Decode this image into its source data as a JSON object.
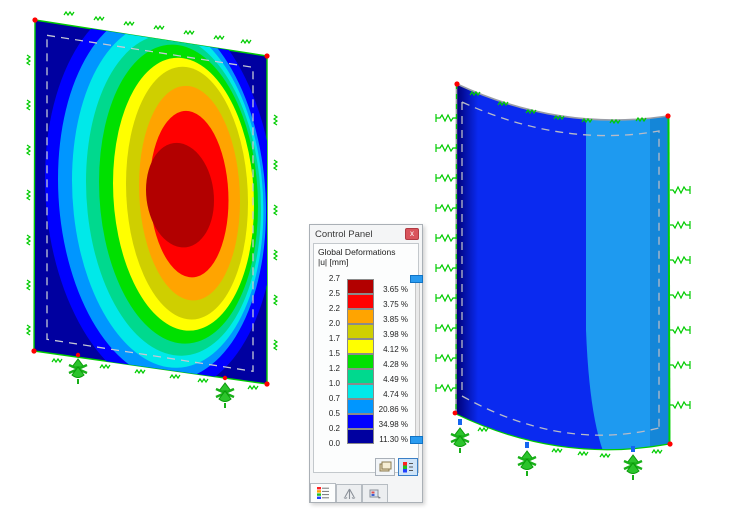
{
  "window": {
    "title": "Control Panel",
    "close_label": "x"
  },
  "panel": {
    "header_line1": "Global Deformations",
    "header_line2": "|u| [mm]",
    "legend": {
      "boundary_values": [
        "2.7",
        "2.5",
        "2.2",
        "2.0",
        "1.7",
        "1.5",
        "1.2",
        "1.0",
        "0.7",
        "0.5",
        "0.2",
        "0.0"
      ],
      "bands": [
        {
          "color": "#b20000",
          "percent": "3.65 %"
        },
        {
          "color": "#ff0000",
          "percent": "3.75 %"
        },
        {
          "color": "#ffa400",
          "percent": "3.85 %"
        },
        {
          "color": "#cfcf00",
          "percent": "3.98 %"
        },
        {
          "color": "#ffff00",
          "percent": "4.12 %"
        },
        {
          "color": "#00e000",
          "percent": "4.28 %"
        },
        {
          "color": "#00d98e",
          "percent": "4.49 %"
        },
        {
          "color": "#00e9e9",
          "percent": "4.74 %"
        },
        {
          "color": "#0096ff",
          "percent": "20.86 %"
        },
        {
          "color": "#0000ff",
          "percent": "34.98 %"
        },
        {
          "color": "#0000a0",
          "percent": "11.30 %"
        }
      ]
    },
    "buttons": [
      {
        "name": "panel-settings-button"
      },
      {
        "name": "color-scale-button",
        "active": true
      }
    ],
    "tabs": [
      {
        "name": "color-scale-tab",
        "active": true
      },
      {
        "name": "factors-tab",
        "active": false
      },
      {
        "name": "display-tab",
        "active": false
      }
    ]
  },
  "scene": {
    "support_color": "#00cc00",
    "node_color": "#ff0000",
    "marker_color": "#1565f0",
    "dashed_outline_color": "#bfc3cf",
    "shell": {
      "edge_gray": "#999da6",
      "navy_left": "#000074",
      "base_blue": "#0a2af0",
      "light_band": "#1e9af0",
      "right_strip": "#1486d8"
    }
  }
}
